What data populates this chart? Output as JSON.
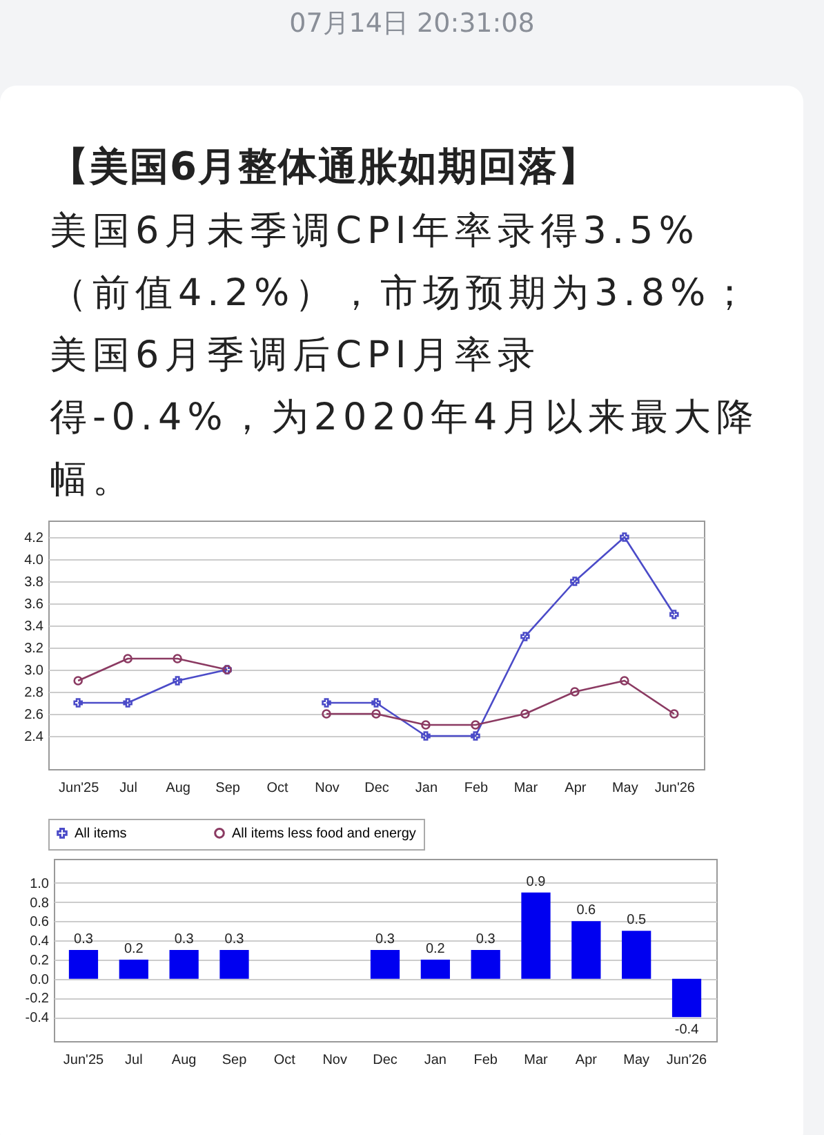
{
  "chart_data": [
    {
      "type": "line",
      "title": "【美国6月整体通胀如期回落】",
      "subtitle": "美国6月未季调CPI年率录得3.5%（前值4.2%），市场预期为3.8%；美国6月季调后CPI月率录得-0.4%，为2020年4月以来最大降幅。",
      "annotations": [
        "07月14日 20:31:08"
      ],
      "categories": [
        "Jun'25",
        "Jul",
        "Aug",
        "Sep",
        "Oct",
        "Nov",
        "Dec",
        "Jan",
        "Feb",
        "Mar",
        "Apr",
        "May",
        "Jun'26"
      ],
      "series": [
        {
          "name": "All items",
          "color": "#4b4bc8",
          "marker": "cross",
          "values": [
            2.7,
            2.7,
            2.9,
            3.0,
            null,
            2.7,
            2.7,
            2.4,
            2.4,
            3.3,
            3.8,
            4.2,
            3.5
          ]
        },
        {
          "name": "All items less food and energy",
          "color": "#8b3a62",
          "marker": "circle",
          "values": [
            2.9,
            3.1,
            3.1,
            3.0,
            null,
            2.6,
            2.6,
            2.5,
            2.5,
            2.6,
            2.8,
            2.9,
            2.6
          ]
        }
      ],
      "ylim": [
        2.1,
        4.35
      ],
      "yticks": [
        2.4,
        2.6,
        2.8,
        {
          "value": 3,
          "label": "3.0"
        },
        3.2,
        3.4,
        3.6,
        3.8,
        {
          "value": 4,
          "label": "4.0"
        },
        4.2
      ],
      "grid": "y",
      "legend": "bottom"
    },
    {
      "type": "bar",
      "categories": [
        "Jun'25",
        "Jul",
        "Aug",
        "Sep",
        "Oct",
        "Nov",
        "Dec",
        "Jan",
        "Feb",
        "Mar",
        "Apr",
        "May",
        "Jun'26"
      ],
      "values": [
        0.3,
        0.2,
        0.3,
        0.3,
        null,
        null,
        0.3,
        0.2,
        0.3,
        0.9,
        0.6,
        0.5,
        -0.4
      ],
      "color": "#0000f0",
      "data_labels": true,
      "ylim": [
        -0.65,
        1.25
      ],
      "yticks": [
        -0.4,
        -0.2,
        {
          "value": 0,
          "label": "0.0"
        },
        0.2,
        0.4,
        0.6,
        0.8,
        {
          "value": 1,
          "label": "1.0"
        }
      ],
      "grid": "y"
    }
  ]
}
